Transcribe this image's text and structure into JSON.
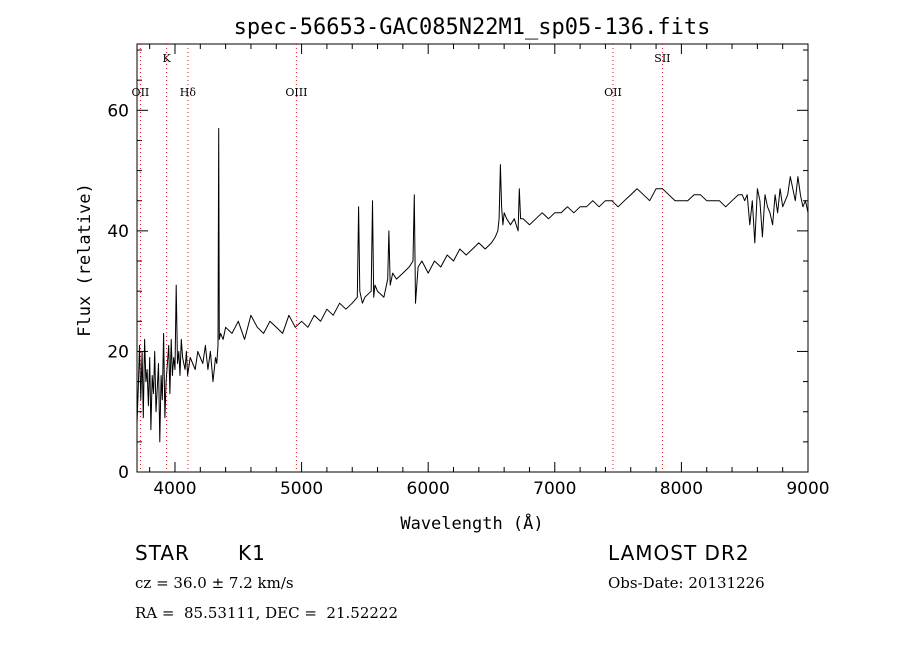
{
  "chart_data": {
    "type": "line",
    "title": "spec-56653-GAC085N22M1_sp05-136.fits",
    "xlabel": "Wavelength (Å)",
    "ylabel": "Flux (relative)",
    "xlim": [
      3700,
      9000
    ],
    "ylim": [
      0,
      71
    ],
    "x_ticks": [
      4000,
      5000,
      6000,
      7000,
      8000,
      9000
    ],
    "y_ticks": [
      0,
      20,
      40,
      60
    ],
    "series": [
      {
        "color": "#000000",
        "x": [
          3700,
          3710,
          3720,
          3730,
          3740,
          3750,
          3760,
          3770,
          3780,
          3790,
          3800,
          3810,
          3820,
          3830,
          3840,
          3850,
          3860,
          3870,
          3880,
          3890,
          3900,
          3910,
          3920,
          3930,
          3940,
          3950,
          3960,
          3970,
          3980,
          3990,
          4000,
          4010,
          4020,
          4030,
          4040,
          4050,
          4060,
          4070,
          4080,
          4090,
          4100,
          4120,
          4140,
          4160,
          4180,
          4200,
          4220,
          4240,
          4260,
          4280,
          4300,
          4320,
          4330,
          4340,
          4345,
          4350,
          4360,
          4380,
          4400,
          4450,
          4500,
          4550,
          4600,
          4650,
          4700,
          4750,
          4800,
          4850,
          4900,
          4950,
          5000,
          5050,
          5100,
          5150,
          5200,
          5250,
          5300,
          5350,
          5400,
          5440,
          5450,
          5460,
          5480,
          5500,
          5550,
          5560,
          5570,
          5580,
          5600,
          5650,
          5680,
          5690,
          5700,
          5720,
          5750,
          5800,
          5850,
          5880,
          5890,
          5900,
          5920,
          5950,
          6000,
          6050,
          6100,
          6150,
          6200,
          6250,
          6300,
          6350,
          6400,
          6450,
          6500,
          6530,
          6550,
          6560,
          6570,
          6580,
          6590,
          6600,
          6620,
          6650,
          6680,
          6710,
          6720,
          6730,
          6750,
          6800,
          6850,
          6900,
          6950,
          7000,
          7050,
          7100,
          7150,
          7200,
          7250,
          7300,
          7350,
          7400,
          7450,
          7500,
          7550,
          7600,
          7650,
          7700,
          7750,
          7800,
          7850,
          7900,
          7950,
          8000,
          8050,
          8100,
          8150,
          8200,
          8250,
          8300,
          8350,
          8400,
          8450,
          8480,
          8500,
          8520,
          8540,
          8560,
          8580,
          8600,
          8620,
          8640,
          8660,
          8680,
          8700,
          8720,
          8740,
          8760,
          8780,
          8800,
          8820,
          8840,
          8860,
          8880,
          8900,
          8920,
          8940,
          8960,
          8980,
          9000
        ],
        "y": [
          8,
          14,
          21,
          12,
          20,
          9,
          22,
          15,
          17,
          11,
          19,
          7,
          16,
          13,
          20,
          10,
          14,
          18,
          5,
          16,
          12,
          23,
          9,
          15,
          18,
          21,
          13,
          22,
          16,
          19,
          17,
          31,
          18,
          20,
          16,
          22,
          19,
          18,
          17,
          20,
          16,
          19,
          18,
          17,
          20,
          19,
          18,
          21,
          17,
          20,
          15,
          19,
          18,
          21,
          57,
          22,
          23,
          22,
          24,
          23,
          25,
          22,
          26,
          24,
          23,
          25,
          24,
          23,
          26,
          24,
          25,
          24,
          26,
          25,
          27,
          26,
          28,
          27,
          28,
          29,
          44,
          30,
          28,
          29,
          30,
          45,
          29,
          31,
          30,
          29,
          32,
          40,
          31,
          33,
          32,
          33,
          34,
          35,
          46,
          28,
          34,
          35,
          33,
          35,
          34,
          36,
          35,
          37,
          36,
          37,
          38,
          37,
          38,
          39,
          40,
          42,
          51,
          44,
          41,
          43,
          42,
          41,
          42,
          40,
          47,
          42,
          42,
          41,
          42,
          43,
          42,
          43,
          43,
          44,
          43,
          44,
          44,
          45,
          44,
          45,
          45,
          44,
          45,
          46,
          47,
          46,
          45,
          47,
          47,
          46,
          45,
          45,
          45,
          46,
          46,
          45,
          45,
          45,
          44,
          45,
          46,
          46,
          45,
          46,
          41,
          45,
          38,
          47,
          45,
          39,
          46,
          44,
          43,
          41,
          46,
          43,
          47,
          44,
          45,
          46,
          49,
          47,
          45,
          49,
          46,
          44,
          45,
          43
        ],
        "peaks": []
      }
    ],
    "lines": [
      {
        "wave": 3727,
        "label": "OII",
        "row": 2
      },
      {
        "wave": 3934,
        "label": "K",
        "row": 1
      },
      {
        "wave": 4102,
        "label": "Hδ",
        "row": 2
      },
      {
        "wave": 4959,
        "label": "OIII",
        "row": 2
      },
      {
        "wave": 7460,
        "label": "OII",
        "row": 2
      },
      {
        "wave": 7850,
        "label": "SII",
        "row": 1
      }
    ]
  },
  "info": {
    "class": "STAR",
    "subclass": "K1",
    "survey": "LAMOST DR2",
    "cz": "cz = 36.0 ± 7.2 km/s",
    "obs_date": "Obs-Date: 20131226",
    "coords": "RA =  85.53111, DEC =  21.52222"
  }
}
